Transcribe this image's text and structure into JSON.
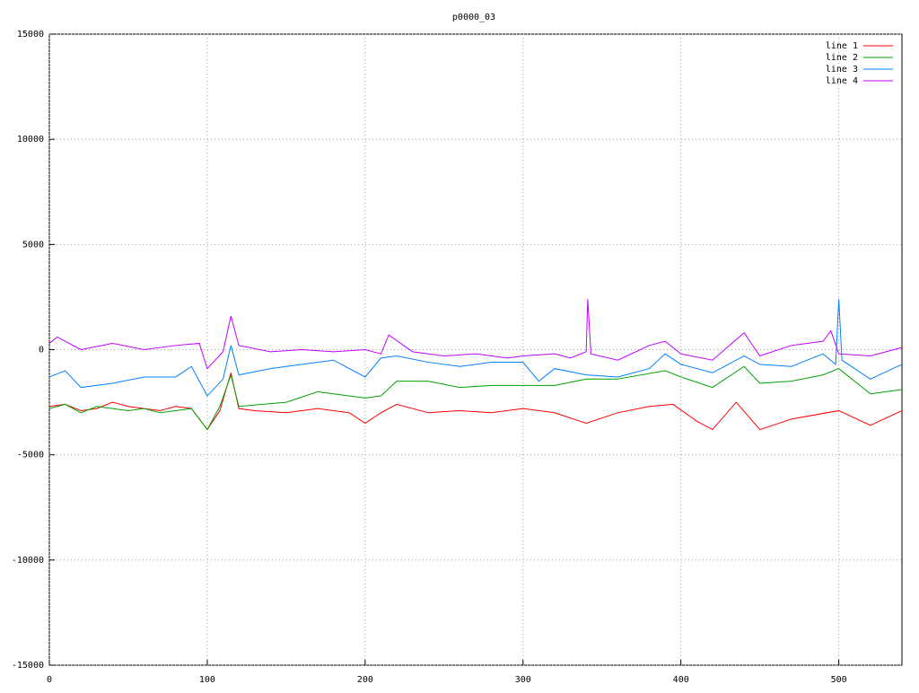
{
  "chart_data": {
    "type": "line",
    "title": "p0000_03",
    "xlim": [
      0,
      540
    ],
    "xticks": [
      0,
      100,
      200,
      300,
      400,
      500
    ],
    "ylim": [
      -15000,
      15000
    ],
    "yticks": [
      -15000,
      -10000,
      -5000,
      0,
      5000,
      10000,
      15000
    ],
    "grid": true,
    "legend": "top-right",
    "series": [
      {
        "name": "line 1",
        "color": "#ff0000",
        "x": [
          0,
          10,
          20,
          30,
          40,
          50,
          60,
          70,
          80,
          90,
          100,
          108,
          115,
          120,
          130,
          150,
          170,
          190,
          200,
          210,
          220,
          240,
          260,
          280,
          300,
          320,
          340,
          360,
          380,
          395,
          410,
          420,
          435,
          450,
          470,
          500,
          520,
          540
        ],
        "values": [
          -2700,
          -2600,
          -2900,
          -2800,
          -2500,
          -2700,
          -2800,
          -2900,
          -2700,
          -2800,
          -3800,
          -2900,
          -1100,
          -2800,
          -2900,
          -3000,
          -2800,
          -3000,
          -3500,
          -3000,
          -2600,
          -3000,
          -2900,
          -3000,
          -2800,
          -3000,
          -3500,
          -3000,
          -2700,
          -2600,
          -3400,
          -3800,
          -2500,
          -3800,
          -3300,
          -2900,
          -3600,
          -2900
        ]
      },
      {
        "name": "line 2",
        "color": "#00a000",
        "x": [
          0,
          10,
          20,
          30,
          40,
          50,
          60,
          70,
          80,
          90,
          100,
          108,
          115,
          120,
          150,
          170,
          200,
          210,
          220,
          240,
          260,
          280,
          300,
          320,
          340,
          360,
          390,
          400,
          420,
          440,
          450,
          470,
          490,
          500,
          520,
          540
        ],
        "values": [
          -2800,
          -2600,
          -3000,
          -2700,
          -2800,
          -2900,
          -2800,
          -3000,
          -2900,
          -2800,
          -3800,
          -2700,
          -1200,
          -2700,
          -2500,
          -2000,
          -2300,
          -2200,
          -1500,
          -1500,
          -1800,
          -1700,
          -1700,
          -1700,
          -1400,
          -1400,
          -1000,
          -1300,
          -1800,
          -800,
          -1600,
          -1500,
          -1200,
          -900,
          -2100,
          -1900
        ]
      },
      {
        "name": "line 3",
        "color": "#0080ff",
        "x": [
          0,
          10,
          20,
          40,
          60,
          80,
          90,
          100,
          110,
          115,
          120,
          140,
          160,
          180,
          200,
          210,
          220,
          240,
          260,
          280,
          300,
          310,
          320,
          340,
          360,
          380,
          390,
          400,
          420,
          440,
          450,
          470,
          490,
          498,
          500,
          502,
          520,
          540
        ],
        "values": [
          -1300,
          -1000,
          -1800,
          -1600,
          -1300,
          -1300,
          -800,
          -2200,
          -1400,
          200,
          -1200,
          -900,
          -700,
          -500,
          -1300,
          -400,
          -300,
          -600,
          -800,
          -600,
          -600,
          -1500,
          -900,
          -1200,
          -1300,
          -900,
          -200,
          -700,
          -1100,
          -300,
          -700,
          -800,
          -200,
          -700,
          2400,
          -500,
          -1400,
          -700
        ]
      },
      {
        "name": "line 4",
        "color": "#c000ff",
        "x": [
          0,
          5,
          20,
          40,
          60,
          80,
          95,
          100,
          110,
          115,
          120,
          140,
          160,
          180,
          200,
          210,
          215,
          230,
          250,
          270,
          290,
          300,
          320,
          330,
          340,
          341,
          343,
          360,
          380,
          390,
          400,
          420,
          440,
          450,
          470,
          490,
          495,
          500,
          520,
          540
        ],
        "values": [
          300,
          600,
          0,
          300,
          0,
          200,
          300,
          -900,
          -100,
          1600,
          200,
          -100,
          0,
          -100,
          0,
          -200,
          700,
          -100,
          -300,
          -200,
          -400,
          -300,
          -200,
          -400,
          -100,
          2400,
          -200,
          -500,
          200,
          400,
          -200,
          -500,
          800,
          -300,
          200,
          400,
          900,
          -200,
          -300,
          100
        ]
      }
    ]
  }
}
